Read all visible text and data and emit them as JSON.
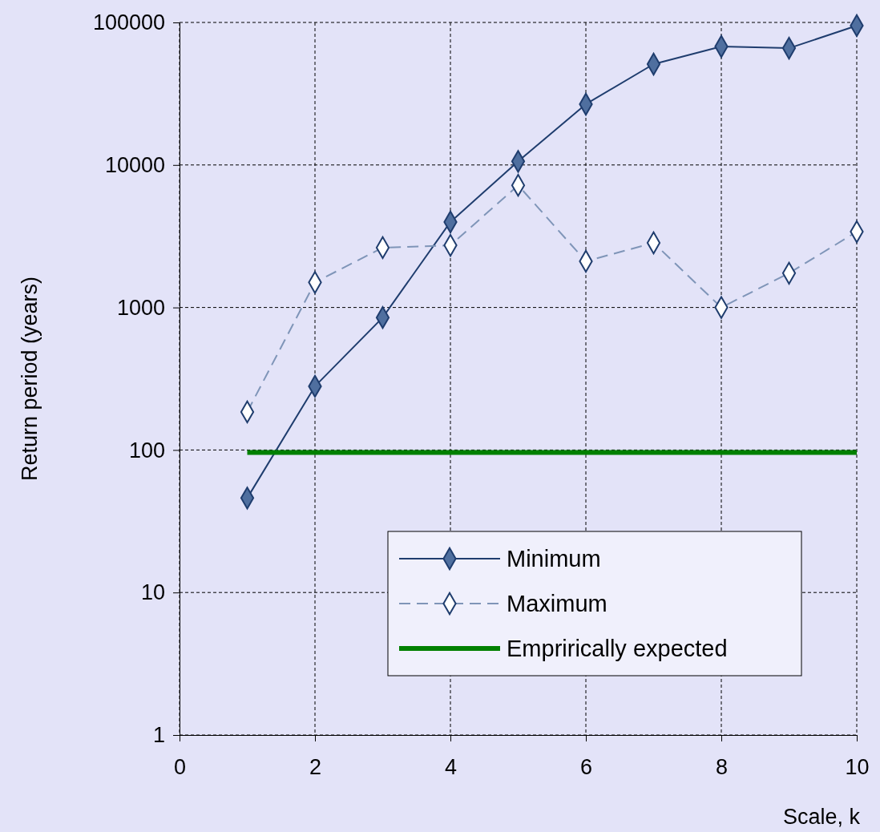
{
  "chart_data": {
    "type": "line",
    "xlabel": "Scale, k",
    "ylabel": "Return period (years)",
    "x": [
      1,
      2,
      3,
      4,
      5,
      6,
      7,
      8,
      9,
      10
    ],
    "series": [
      {
        "name": "Minimum",
        "color": "#1f3d6e",
        "values": [
          46,
          280,
          850,
          3980,
          10600,
          26700,
          51000,
          67800,
          66000,
          95000
        ],
        "marker": "diamond",
        "line_style": "solid"
      },
      {
        "name": "Maximum",
        "color": "#7f95b8",
        "values": [
          185,
          1500,
          2630,
          2730,
          7200,
          2110,
          2840,
          1000,
          1740,
          3400
        ],
        "marker": "diamond",
        "line_style": "dashed"
      },
      {
        "name": "Emprirically expected",
        "color": "#008000",
        "x": [
          1,
          10
        ],
        "values": [
          96,
          96
        ],
        "marker": "none",
        "line_style": "solid"
      }
    ],
    "log": "y",
    "xlim": [
      0,
      10
    ],
    "xticks": [
      0,
      2,
      4,
      6,
      8,
      10
    ],
    "ylim": [
      1,
      100000
    ],
    "yticks": [
      1,
      10,
      100,
      1000,
      10000,
      100000
    ],
    "grid": true,
    "legend": "bottom right"
  }
}
